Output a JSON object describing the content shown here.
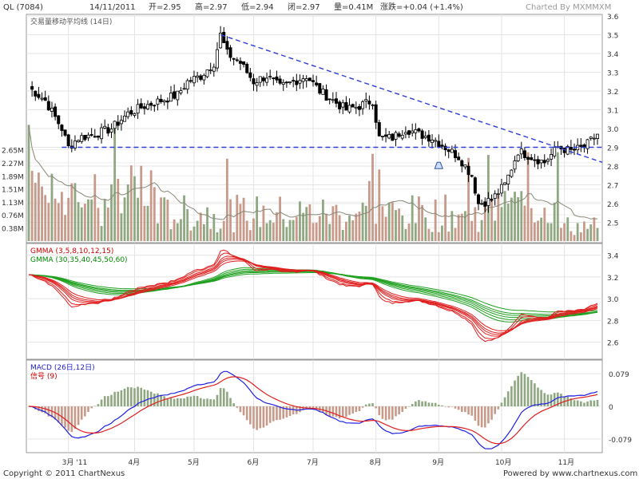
{
  "header": {
    "symbol": "QL (7084)",
    "date": "14/11/2011",
    "open": "开=2.95",
    "high": "高=2.97",
    "low": "低=2.94",
    "close": "闭=2.97",
    "volume": "量=0.41M",
    "change": "涨跌=+0.04 (+1.4%)",
    "charted_by": "Charted By MXMMXM"
  },
  "footer": {
    "copyright": "Copyright © 2011 ChartNexus",
    "powered": "Powered by www.chartnexus.com"
  },
  "colors": {
    "up_candle": "#ffffff",
    "down_candle": "#000000",
    "volume_up": "#8fa882",
    "volume_down": "#c79a8a",
    "trend": "#2c3ed6",
    "gmma_short": "#e02020",
    "gmma_long": "#20a020",
    "macd": "#2020e0",
    "signal": "#e02020"
  },
  "chart_data": [
    {
      "type": "candlestick",
      "ylim": [
        2.4,
        3.6
      ],
      "yticks": [
        "3.6",
        "3.5",
        "3.4",
        "3.3",
        "3.2",
        "3.1",
        "3.0",
        "2.9",
        "2.8",
        "2.7",
        "2.6",
        "2.5"
      ],
      "xticks": [
        "3月 '11",
        "4月",
        "5月",
        "6月",
        "7月",
        "8月",
        "9月",
        "10月",
        "11月"
      ],
      "close_path": [
        [
          0,
          3.22
        ],
        [
          5,
          3.15
        ],
        [
          10,
          3.0
        ],
        [
          12,
          2.9
        ],
        [
          15,
          2.95
        ],
        [
          20,
          2.97
        ],
        [
          25,
          3.0
        ],
        [
          30,
          3.08
        ],
        [
          35,
          3.12
        ],
        [
          40,
          3.15
        ],
        [
          45,
          3.18
        ],
        [
          48,
          3.25
        ],
        [
          52,
          3.28
        ],
        [
          56,
          3.35
        ],
        [
          58,
          3.5
        ],
        [
          60,
          3.4
        ],
        [
          64,
          3.35
        ],
        [
          68,
          3.25
        ],
        [
          72,
          3.28
        ],
        [
          76,
          3.22
        ],
        [
          80,
          3.25
        ],
        [
          84,
          3.28
        ],
        [
          88,
          3.2
        ],
        [
          92,
          3.15
        ],
        [
          96,
          3.1
        ],
        [
          100,
          3.12
        ],
        [
          104,
          3.15
        ],
        [
          106,
          2.95
        ],
        [
          110,
          2.95
        ],
        [
          114,
          3.0
        ],
        [
          118,
          2.97
        ],
        [
          122,
          2.95
        ],
        [
          126,
          2.9
        ],
        [
          130,
          2.85
        ],
        [
          134,
          2.75
        ],
        [
          136,
          2.6
        ],
        [
          140,
          2.62
        ],
        [
          144,
          2.7
        ],
        [
          148,
          2.88
        ],
        [
          152,
          2.85
        ],
        [
          156,
          2.82
        ],
        [
          160,
          2.9
        ],
        [
          164,
          2.88
        ],
        [
          168,
          2.9
        ],
        [
          172,
          2.97
        ]
      ],
      "trendline": {
        "from": [
          58,
          3.5
        ],
        "to": [
          172,
          2.82
        ]
      },
      "support_line": 2.9,
      "alert_marker": [
        124,
        2.82
      ]
    },
    {
      "type": "bar",
      "name": "交易量移动平均线 (14日)",
      "yticks": [
        "2.65M",
        "2.27M",
        "1.89M",
        "1.51M",
        "1.13M",
        "0.76M",
        "0.38M"
      ],
      "ylim": [
        0,
        3.1
      ]
    },
    {
      "type": "line",
      "legend": [
        "GMMA (3,5,8,10,12,15)",
        "GMMA (30,35,40,45,50,60)"
      ],
      "yticks": [
        "3.4",
        "3.2",
        "3.0",
        "2.8",
        "2.6"
      ],
      "ylim": [
        2.45,
        3.5
      ]
    },
    {
      "type": "line",
      "legend": [
        "MACD (26日,12日)",
        "信号 (9)"
      ],
      "yticks": [
        "0.079",
        "0",
        "-0.079"
      ],
      "ylim": [
        -0.11,
        0.11
      ]
    }
  ]
}
